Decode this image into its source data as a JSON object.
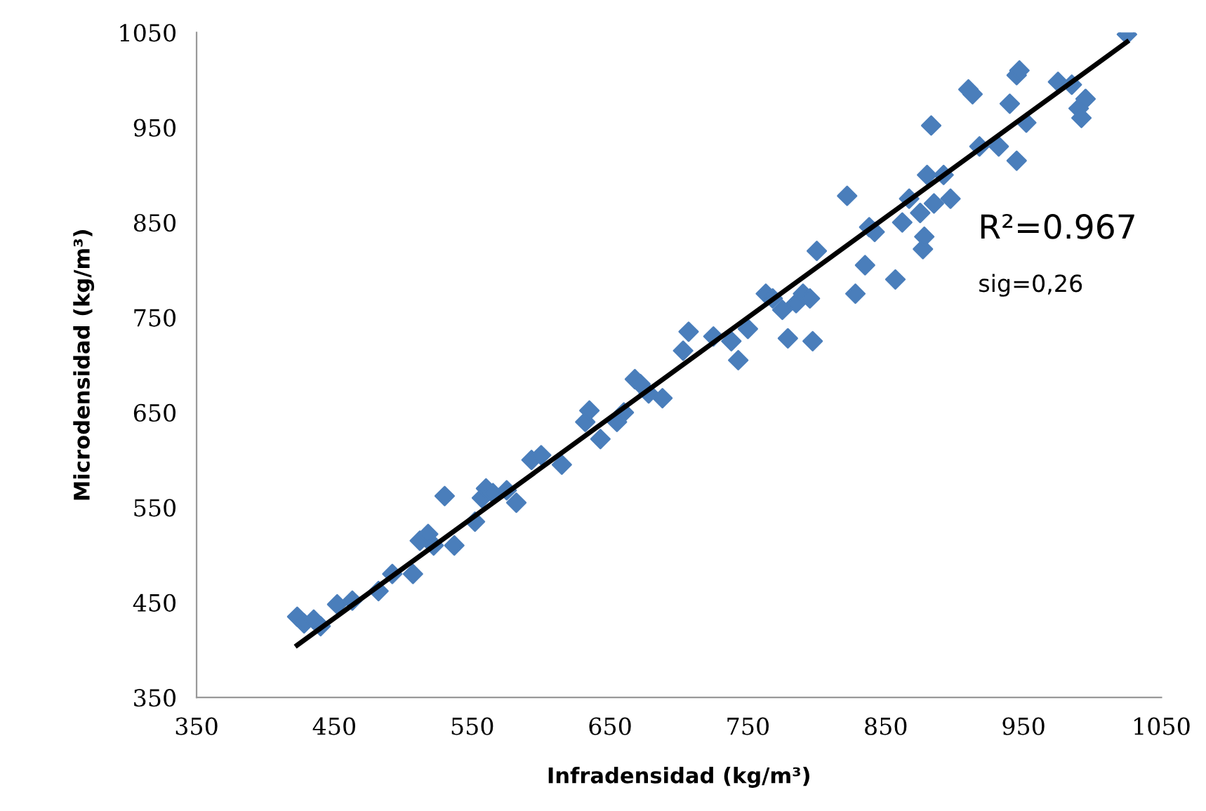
{
  "chart_data": {
    "type": "scatter",
    "xlabel": "Infradensidad (kg/m³)",
    "ylabel": "Microdensidad (kg/m³)",
    "annotations": [
      "R²=0.967",
      "sig=0,26"
    ],
    "xlim": [
      350,
      1050
    ],
    "xticks": [
      350,
      450,
      550,
      650,
      750,
      850,
      950,
      1050
    ],
    "ylim": [
      350,
      1050
    ],
    "yticks": [
      350,
      450,
      550,
      650,
      750,
      850,
      950,
      1050
    ],
    "grid": false,
    "legend": false,
    "marker": "diamond",
    "series": [
      {
        "color": "#4a7ebb",
        "x": [
          423,
          428,
          435,
          440,
          452,
          463,
          482,
          492,
          507,
          512,
          518,
          522,
          530,
          537,
          552,
          557,
          560,
          565,
          575,
          582,
          593,
          600,
          615,
          632,
          635,
          643,
          655,
          660,
          668,
          672,
          678,
          688,
          703,
          707,
          725,
          738,
          743,
          750,
          763,
          768,
          775,
          779,
          785,
          790,
          795,
          797,
          800,
          822,
          828,
          835,
          838,
          842,
          857,
          862,
          867,
          875,
          877,
          878,
          880,
          883,
          885,
          892,
          897,
          910,
          913,
          918,
          932,
          940,
          945,
          947,
          945,
          952,
          975,
          985,
          990,
          992,
          995,
          1025
        ],
        "values": [
          435,
          428,
          432,
          425,
          448,
          452,
          462,
          480,
          480,
          515,
          522,
          510,
          562,
          510,
          535,
          560,
          570,
          565,
          568,
          555,
          600,
          605,
          595,
          640,
          652,
          622,
          640,
          650,
          685,
          680,
          670,
          665,
          715,
          735,
          730,
          725,
          705,
          738,
          775,
          770,
          758,
          728,
          765,
          775,
          770,
          725,
          820,
          878,
          775,
          805,
          845,
          840,
          790,
          850,
          875,
          860,
          822,
          835,
          900,
          952,
          870,
          900,
          875,
          990,
          985,
          930,
          930,
          975,
          1005,
          1010,
          915,
          955,
          998,
          995,
          970,
          960,
          980,
          1048
        ]
      },
      {
        "type": "line",
        "color": "#000000",
        "marker": "none",
        "line_style": "solid",
        "x": [
          423,
          1025
        ],
        "values": [
          405,
          1040
        ]
      }
    ]
  }
}
